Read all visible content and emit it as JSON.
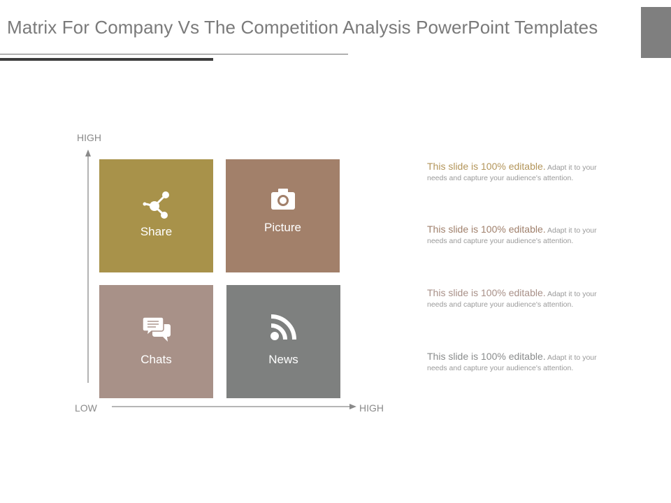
{
  "title": "Matrix For Company Vs The Competition Analysis PowerPoint Templates",
  "axes": {
    "y_high": "HIGH",
    "x_low": "LOW",
    "x_high": "HIGH"
  },
  "quadrants": [
    {
      "label": "Share",
      "icon": "share-icon",
      "color": "#a8924a"
    },
    {
      "label": "Picture",
      "icon": "camera-icon",
      "color": "#a2806a"
    },
    {
      "label": "Chats",
      "icon": "chat-icon",
      "color": "#a89188"
    },
    {
      "label": "News",
      "icon": "rss-icon",
      "color": "#7e807f"
    }
  ],
  "notes": [
    {
      "lead": "This slide is 100% editable.",
      "body": " Adapt it to your needs and capture your audience's attention.",
      "color": "#b3955a"
    },
    {
      "lead": "This slide is 100% editable.",
      "body": " Adapt it to your needs and capture your audience's attention.",
      "color": "#a0806c"
    },
    {
      "lead": "This slide is 100% editable.",
      "body": " Adapt it to your needs and capture your audience's attention.",
      "color": "#a89088"
    },
    {
      "lead": "This slide is 100% editable.",
      "body": " Adapt it to your needs and capture your audience's attention.",
      "color": "#8a8c8c"
    }
  ]
}
